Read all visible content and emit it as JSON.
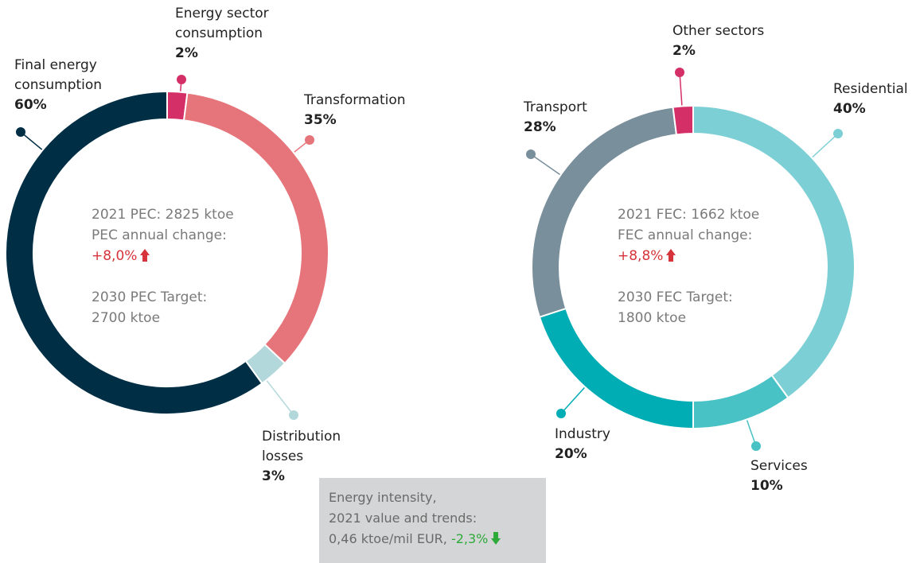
{
  "chart_data": [
    {
      "type": "donut",
      "categories": [
        "Energy sector consumption",
        "Transformation",
        "Distribution losses",
        "Final energy consumption"
      ],
      "values": [
        2,
        35,
        3,
        60
      ],
      "value_labels": [
        "2%",
        "35%",
        "3%",
        "60%"
      ],
      "colors": [
        "#d42f66",
        "#e6757b",
        "#b3d8db",
        "#002e45"
      ],
      "center": {
        "lines": [
          "2021 PEC: 2825 ktoe",
          "PEC annual change:"
        ],
        "change": "+8,0%",
        "target": [
          "2030 PEC Target:",
          "2700 ktoe"
        ]
      }
    },
    {
      "type": "donut",
      "categories": [
        "Residential",
        "Services",
        "Industry",
        "Transport",
        "Other sectors"
      ],
      "values": [
        40,
        10,
        20,
        28,
        2
      ],
      "value_labels": [
        "40%",
        "10%",
        "20%",
        "28%",
        "2%"
      ],
      "colors": [
        "#7ccfd4",
        "#48c2c5",
        "#00adb5",
        "#7a8f9c",
        "#d42f66"
      ],
      "center": {
        "lines": [
          "2021 FEC: 1662 ktoe",
          "FEC annual change:"
        ],
        "change": "+8,8%",
        "target": [
          "2030 FEC Target:",
          "1800 ktoe"
        ]
      }
    }
  ],
  "note": {
    "lines": [
      "Energy intensity,",
      "2021 value and trends:",
      "0,46 ktoe/mil EUR,"
    ],
    "change": "-2,3%"
  }
}
